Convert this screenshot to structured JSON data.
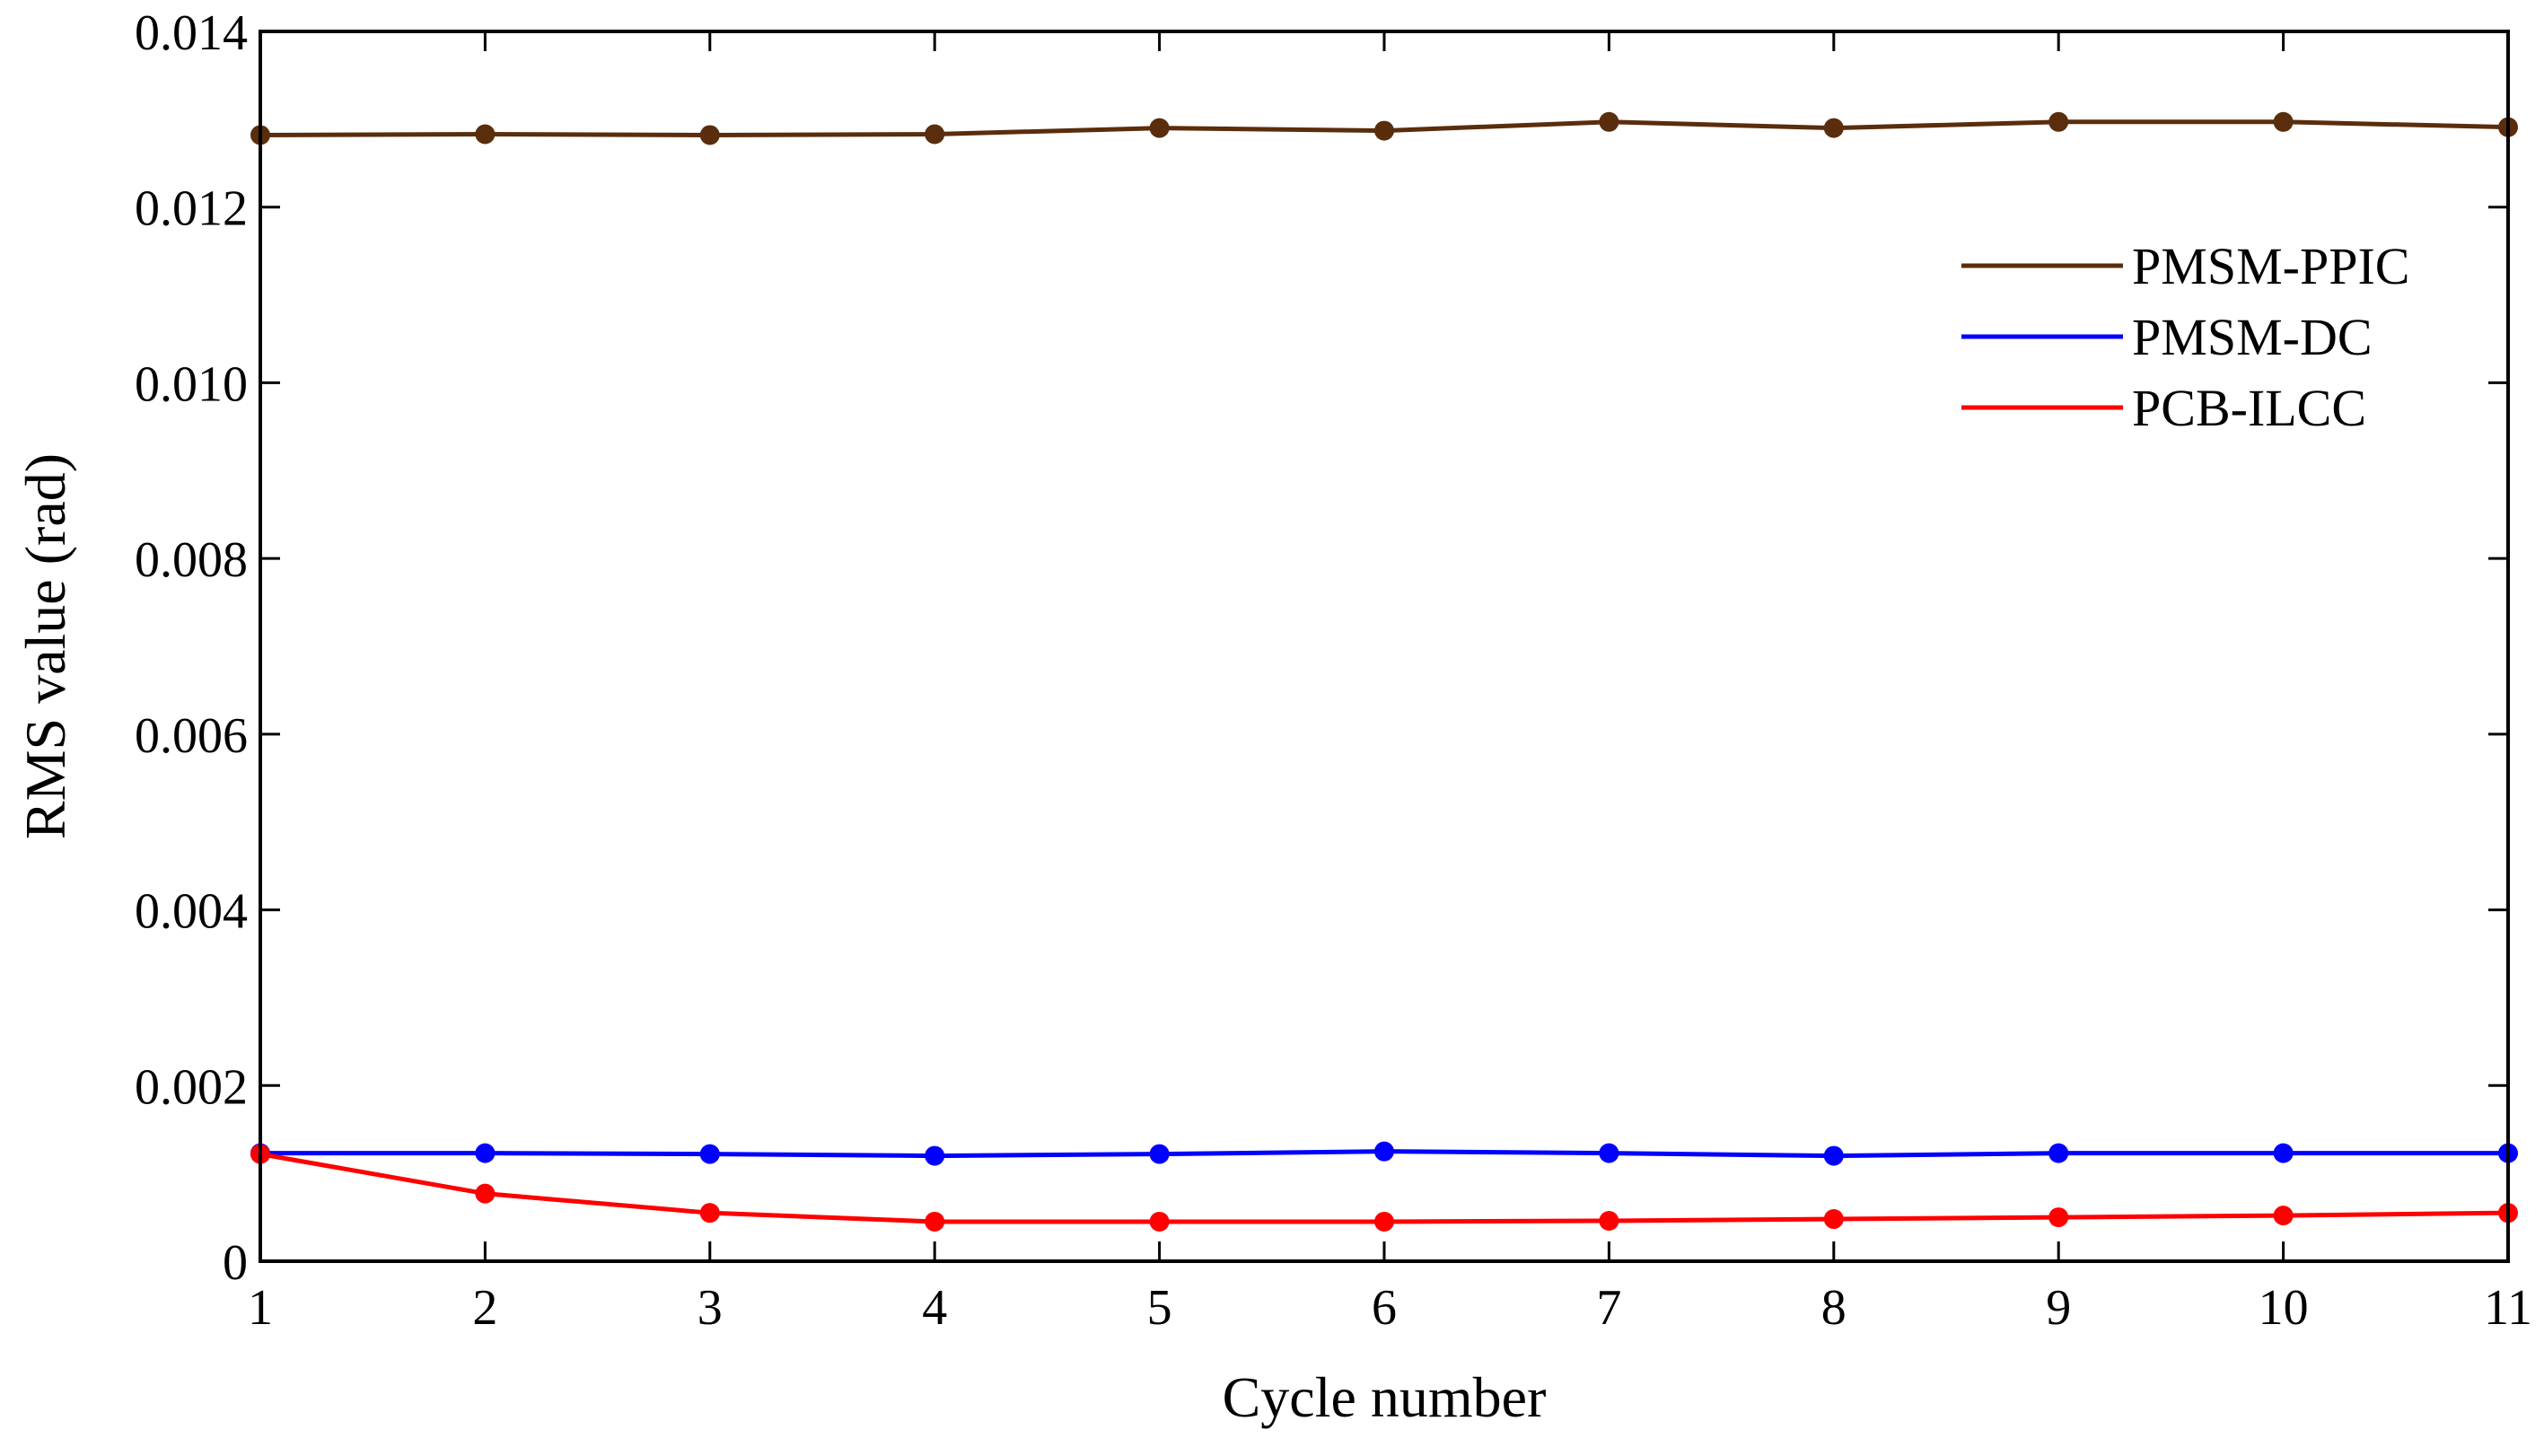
{
  "chart_data": {
    "type": "line",
    "title": "",
    "xlabel": "Cycle number",
    "ylabel": "RMS value (rad)",
    "x": [
      1,
      2,
      3,
      4,
      5,
      6,
      7,
      8,
      9,
      10,
      11
    ],
    "xlim": [
      1,
      11
    ],
    "ylim": [
      0,
      0.014
    ],
    "xticks": [
      "1",
      "2",
      "3",
      "4",
      "5",
      "6",
      "7",
      "8",
      "9",
      "10",
      "11"
    ],
    "yticks": [
      "0",
      "0.002",
      "0.004",
      "0.006",
      "0.008",
      "0.010",
      "0.012",
      "0.014"
    ],
    "grid": false,
    "legend_position": "top-right",
    "series": [
      {
        "name": "PMSM-PPIC",
        "color": "#5a2d0c",
        "values": [
          0.01282,
          0.01283,
          0.01282,
          0.01283,
          0.0129,
          0.01287,
          0.01297,
          0.0129,
          0.01297,
          0.01297,
          0.01291
        ]
      },
      {
        "name": "PMSM-DC",
        "color": "#0000ff",
        "values": [
          0.00123,
          0.00123,
          0.00122,
          0.0012,
          0.00122,
          0.00125,
          0.00123,
          0.0012,
          0.00123,
          0.00123,
          0.00123
        ]
      },
      {
        "name": "PCB-ILCC",
        "color": "#ff0000",
        "values": [
          0.00122,
          0.00077,
          0.00055,
          0.00045,
          0.00045,
          0.00045,
          0.00046,
          0.00048,
          0.0005,
          0.00052,
          0.00055
        ]
      }
    ]
  }
}
